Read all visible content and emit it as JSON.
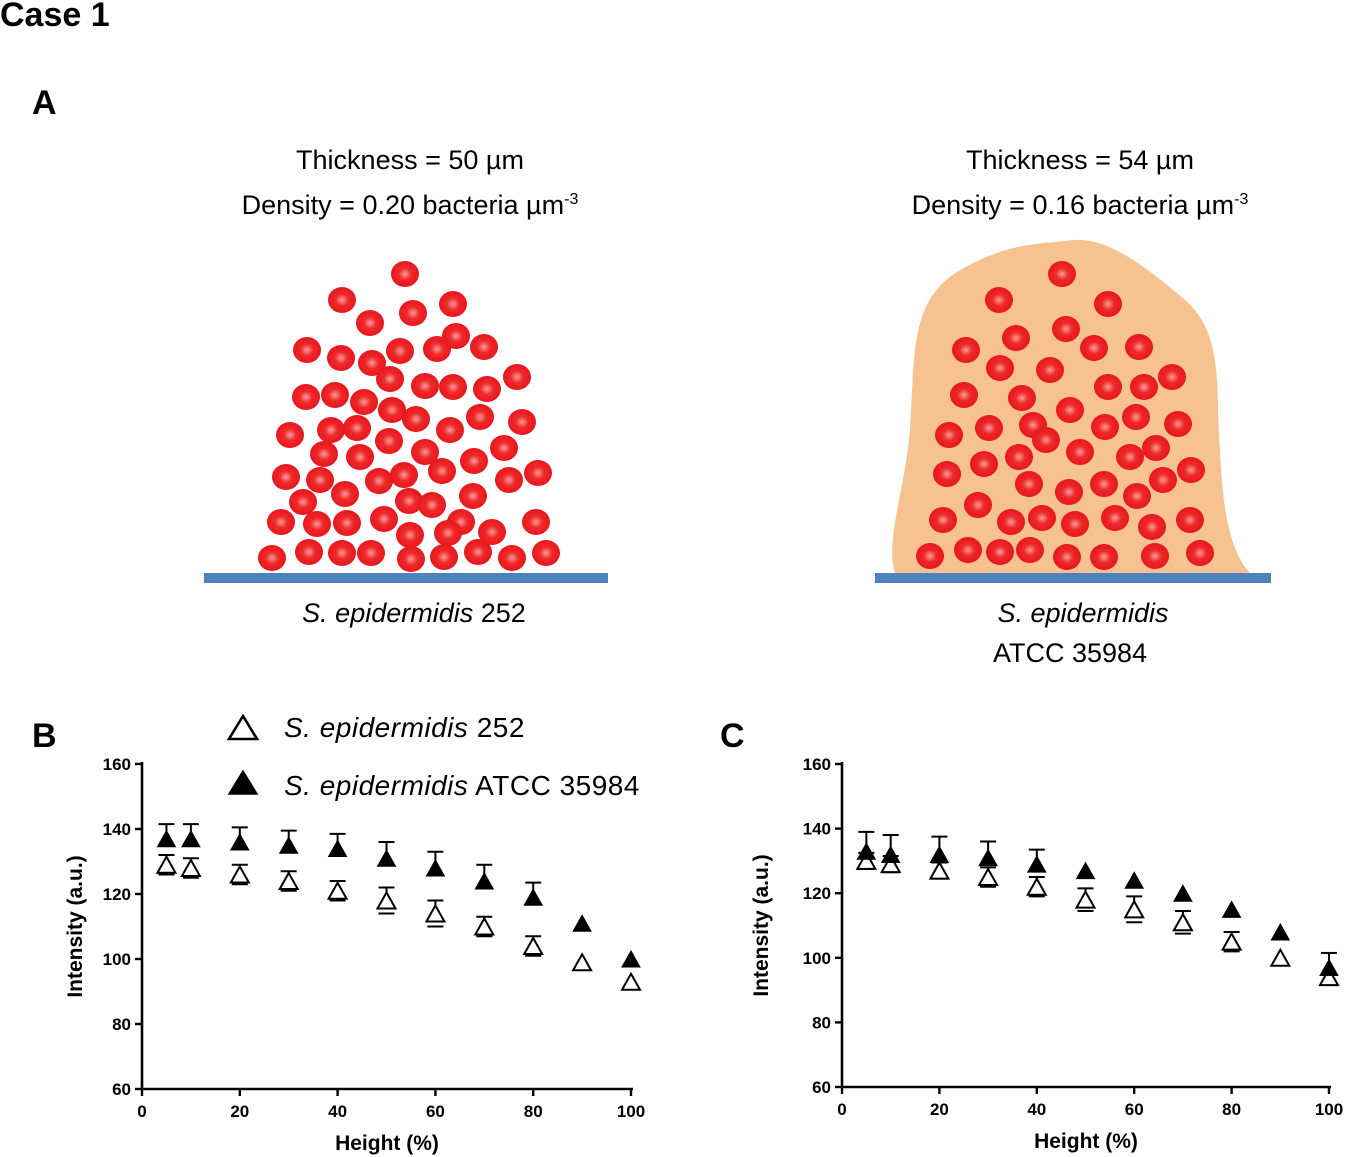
{
  "case_title": "Case 1",
  "panel_labels": {
    "a": "A",
    "b": "B",
    "c": "C"
  },
  "biofilm_left": {
    "thickness": "Thickness = 50 µm",
    "density": "Density = 0.20 bacteria µm",
    "density_exp": "-3",
    "strain_italic": "S. epidermidis",
    "strain_rest": "252"
  },
  "biofilm_right": {
    "thickness": "Thickness = 54 µm",
    "density": "Density = 0.16 bacteria µm",
    "density_exp": "-3",
    "strain_italic": "S. epidermidis",
    "strain_rest": "ATCC 35984"
  },
  "legend": [
    {
      "italic": "S. epidermidis",
      "rest": "252",
      "marker": "open-triangle"
    },
    {
      "italic": "S. epidermidis",
      "rest": "ATCC 35984",
      "marker": "filled-triangle"
    }
  ],
  "colors": {
    "cell": "#e8161e",
    "matrix": "#f6c28f",
    "substrate": "#4f81bd",
    "axis": "#000000"
  },
  "chart_data": [
    {
      "id": "B",
      "type": "scatter",
      "xlabel": "Height (%)",
      "ylabel": "Intensity (a.u.)",
      "xlim": [
        0,
        100
      ],
      "ylim": [
        60,
        160
      ],
      "xticks": [
        0,
        20,
        40,
        60,
        80,
        100
      ],
      "yticks": [
        60,
        80,
        100,
        120,
        140,
        160
      ],
      "x": [
        5,
        10,
        20,
        30,
        40,
        50,
        60,
        70,
        80,
        90,
        100
      ],
      "series": [
        {
          "name": "S. epidermidis 252",
          "marker": "open-triangle",
          "values": [
            129,
            128,
            126,
            124,
            121,
            118,
            114,
            110,
            104,
            99,
            93
          ],
          "err": [
            3,
            3,
            3,
            3,
            3,
            4,
            4,
            3,
            3,
            0,
            0
          ]
        },
        {
          "name": "S. epidermidis ATCC 35984",
          "marker": "filled-triangle",
          "values": [
            137,
            137,
            136,
            135,
            134,
            131,
            128,
            124,
            119,
            111,
            100
          ],
          "err": [
            4.5,
            4.5,
            4.5,
            4.5,
            4.5,
            5,
            5,
            5,
            4.5,
            0,
            0
          ]
        }
      ]
    },
    {
      "id": "C",
      "type": "scatter",
      "xlabel": "Height (%)",
      "ylabel": "Intensity (a.u.)",
      "xlim": [
        0,
        100
      ],
      "ylim": [
        60,
        160
      ],
      "xticks": [
        0,
        20,
        40,
        60,
        80,
        100
      ],
      "yticks": [
        60,
        80,
        100,
        120,
        140,
        160
      ],
      "x": [
        5,
        10,
        20,
        30,
        40,
        50,
        60,
        70,
        80,
        90,
        100
      ],
      "series": [
        {
          "name": "S. epidermidis 252",
          "marker": "open-triangle",
          "values": [
            130,
            129,
            127,
            125,
            122,
            118,
            115,
            111,
            105,
            100,
            94
          ],
          "err": [
            2.5,
            2.5,
            2.5,
            3,
            3,
            3.5,
            4,
            3.5,
            3,
            0,
            0
          ]
        },
        {
          "name": "S. epidermidis ATCC 35984",
          "marker": "filled-triangle",
          "values": [
            133,
            132,
            132,
            131,
            129,
            127,
            124,
            120,
            115,
            108,
            97
          ],
          "err": [
            6,
            6,
            5.5,
            5,
            4.5,
            0,
            0,
            0,
            0,
            0,
            4.5
          ]
        }
      ]
    }
  ]
}
